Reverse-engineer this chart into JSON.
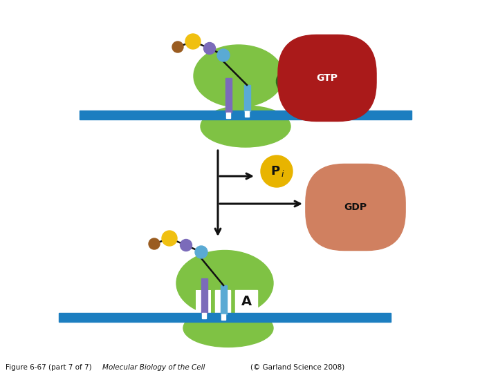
{
  "caption_plain": "Figure 6-67 (part 7 of 7)  ",
  "caption_italic": "Molecular Biology of the Cell",
  "caption_end": "(© Garland Science 2008)",
  "bg_color": "#ffffff",
  "fig_width": 7.2,
  "fig_height": 5.4,
  "dpi": 100,
  "green_ribosome": "#7fc244",
  "green_dark": "#2e6b1a",
  "blue_stripe": "#1c7ec0",
  "purple": "#7b6bba",
  "light_blue_ball": "#5aaad4",
  "yellow_ball": "#f0c010",
  "brown_ball": "#9a5c20",
  "black": "#111111",
  "red_label": "#aa1a1a",
  "salmon_label": "#d08060",
  "gold_label": "#e8b400",
  "white": "#ffffff"
}
